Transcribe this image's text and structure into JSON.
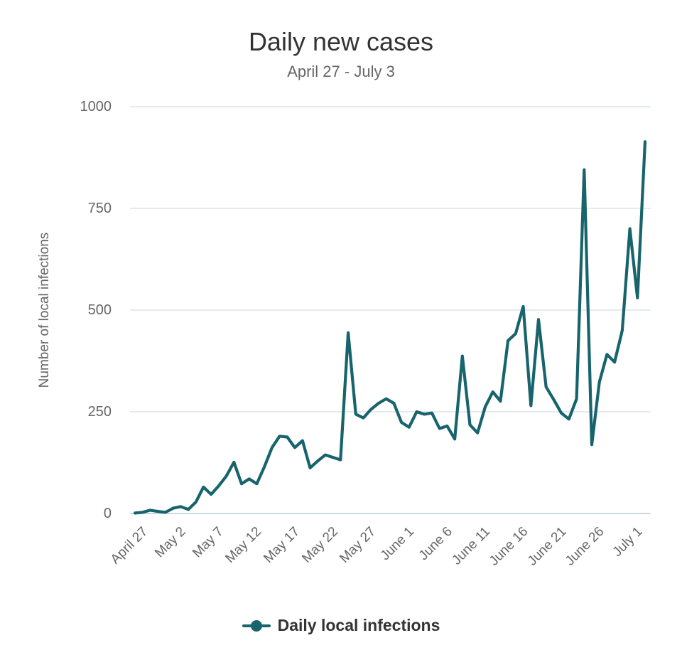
{
  "header": {
    "title": "Daily new cases",
    "subtitle": "April 27 - July 3"
  },
  "icons": {
    "context_menu": "hamburger-icon"
  },
  "colors": {
    "series": "#17646d",
    "title_text": "#333333",
    "subtitle_text": "#666666",
    "axis_label_text": "#666666",
    "legend_text": "#333333",
    "gridline": "#e5e9f0",
    "axis_line": "#ccd6e5",
    "menu_icon": "#5b5b5b",
    "background": "#ffffff"
  },
  "legend": {
    "label": "Daily local infections"
  },
  "chart_data": {
    "type": "line",
    "title": "Daily new cases",
    "subtitle": "April 27 - July 3",
    "xlabel": "",
    "ylabel": "Number of local infections",
    "ylim": [
      0,
      1000
    ],
    "yticks": [
      0,
      250,
      500,
      750,
      1000
    ],
    "grid": true,
    "legend_position": "bottom",
    "xtick_labels": [
      "April 27",
      "May 2",
      "May 7",
      "May 12",
      "May 17",
      "May 22",
      "May 27",
      "June 1",
      "June 6",
      "June 11",
      "June 16",
      "June 21",
      "June 26",
      "July 1"
    ],
    "xtick_indices": [
      0,
      5,
      10,
      15,
      20,
      25,
      30,
      35,
      40,
      45,
      50,
      55,
      60,
      65
    ],
    "series": [
      {
        "name": "Daily local infections",
        "color": "#17646d",
        "marker": "circle",
        "x": [
          "April 27",
          "April 28",
          "April 29",
          "April 30",
          "May 1",
          "May 2",
          "May 3",
          "May 4",
          "May 5",
          "May 6",
          "May 7",
          "May 8",
          "May 9",
          "May 10",
          "May 11",
          "May 12",
          "May 13",
          "May 14",
          "May 15",
          "May 16",
          "May 17",
          "May 18",
          "May 19",
          "May 20",
          "May 21",
          "May 22",
          "May 23",
          "May 24",
          "May 25",
          "May 26",
          "May 27",
          "May 28",
          "May 29",
          "May 30",
          "May 31",
          "June 1",
          "June 2",
          "June 3",
          "June 4",
          "June 5",
          "June 6",
          "June 7",
          "June 8",
          "June 9",
          "June 10",
          "June 11",
          "June 12",
          "June 13",
          "June 14",
          "June 15",
          "June 16",
          "June 17",
          "June 18",
          "June 19",
          "June 20",
          "June 21",
          "June 22",
          "June 23",
          "June 24",
          "June 25",
          "June 26",
          "June 27",
          "June 28",
          "June 29",
          "June 30",
          "July 1",
          "July 2",
          "July 3"
        ],
        "values": [
          1,
          3,
          8,
          5,
          3,
          13,
          17,
          10,
          28,
          65,
          47,
          68,
          92,
          126,
          73,
          85,
          73,
          115,
          162,
          190,
          188,
          162,
          179,
          112,
          129,
          144,
          138,
          132,
          444,
          244,
          235,
          256,
          271,
          282,
          271,
          224,
          212,
          250,
          244,
          247,
          209,
          215,
          183,
          387,
          218,
          198,
          262,
          299,
          276,
          425,
          442,
          509,
          265,
          477,
          311,
          280,
          247,
          232,
          282,
          845,
          169,
          323,
          391,
          372,
          450,
          700,
          530,
          914
        ]
      }
    ]
  }
}
